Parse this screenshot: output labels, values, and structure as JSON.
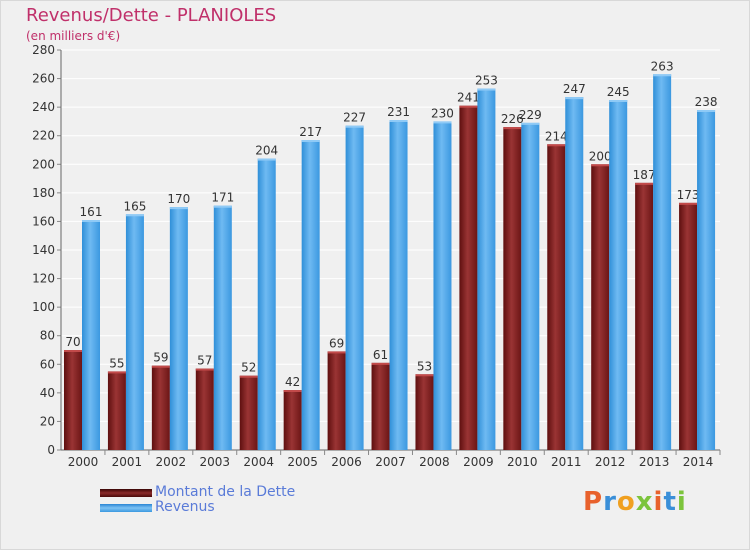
{
  "colors": {
    "dette": "#7a1c1c",
    "dette_light": "#9e3a3a",
    "revenus": "#4aa3e8",
    "revenus_light": "#6fb9f0",
    "title": "#c0306a",
    "legend_text": "#5a7bd8"
  },
  "header": {
    "title": "Revenus/Dette - PLANIOLES",
    "subtitle": "(en milliers d'€)"
  },
  "legend": {
    "items": [
      {
        "label": "Montant de la Dette",
        "color": "#6b1414"
      },
      {
        "label": "Revenus",
        "color": "#3e9ce6"
      }
    ]
  },
  "logo": {
    "text": "Proxiti"
  },
  "chart_data": {
    "type": "bar",
    "title": "Revenus/Dette - PLANIOLES",
    "ylabel": "(en milliers d'€)",
    "xlabel": "",
    "ylim": [
      0,
      280
    ],
    "yticks": [
      0,
      20,
      40,
      60,
      80,
      100,
      120,
      140,
      160,
      180,
      200,
      220,
      240,
      260,
      280
    ],
    "grid": true,
    "legend_position": "bottom-left",
    "categories": [
      "2000",
      "2001",
      "2002",
      "2003",
      "2004",
      "2005",
      "2006",
      "2007",
      "2008",
      "2009",
      "2010",
      "2011",
      "2012",
      "2013",
      "2014"
    ],
    "series": [
      {
        "name": "Montant de la Dette",
        "values": [
          70,
          55,
          59,
          57,
          52,
          42,
          69,
          61,
          53,
          241,
          226,
          214,
          200,
          187,
          173
        ]
      },
      {
        "name": "Revenus",
        "values": [
          161,
          165,
          170,
          171,
          204,
          217,
          227,
          231,
          230,
          253,
          229,
          247,
          245,
          263,
          238
        ]
      }
    ]
  }
}
